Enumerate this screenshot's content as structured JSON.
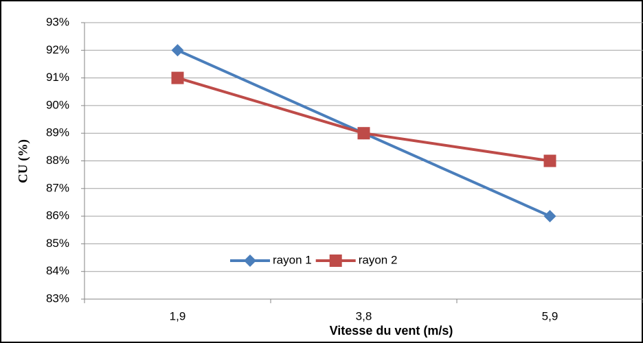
{
  "chart_data": {
    "type": "line",
    "x_label": "Vitesse du vent (m/s)",
    "y_label": "CU (%)",
    "categories": [
      "1,9",
      "3,8",
      "5,9"
    ],
    "series": [
      {
        "name": "rayon 1",
        "color": "#4a7ebb",
        "marker": "diamond",
        "values": [
          92,
          89,
          86
        ]
      },
      {
        "name": "rayon 2",
        "color": "#be4b48",
        "marker": "square",
        "values": [
          91,
          89,
          88
        ]
      }
    ],
    "ylim": [
      83,
      93
    ],
    "yticks": [
      {
        "value": 83,
        "label": "83%"
      },
      {
        "value": 84,
        "label": "84%"
      },
      {
        "value": 85,
        "label": "85%"
      },
      {
        "value": 86,
        "label": "86%"
      },
      {
        "value": 87,
        "label": "87%"
      },
      {
        "value": 88,
        "label": "88%"
      },
      {
        "value": 89,
        "label": "89%"
      },
      {
        "value": 90,
        "label": "90%"
      },
      {
        "value": 91,
        "label": "91%"
      },
      {
        "value": 92,
        "label": "92%"
      },
      {
        "value": 93,
        "label": "93%"
      }
    ],
    "grid": true,
    "legend": "bottom"
  }
}
